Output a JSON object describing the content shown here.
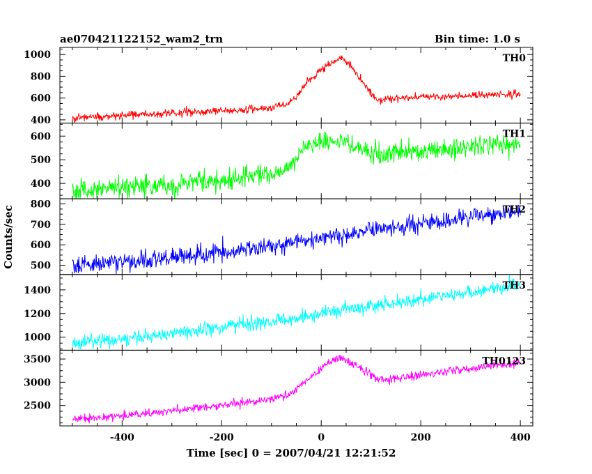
{
  "chart_data": {
    "type": "line",
    "title": "ae070421122152_wam2_trn",
    "bin_time": "Bin time: 1.0 s",
    "xlabel": "Time [sec] 0 = 2007/04/21 12:21:52",
    "ylabel": "Counts/sec",
    "xlim": [
      -525,
      425
    ],
    "x_ticks": [
      -400,
      -200,
      0,
      200,
      400
    ],
    "t_range": [
      -500,
      400
    ],
    "grid": false,
    "panels": [
      {
        "name": "TH0",
        "color": "#ff0000",
        "ylim": [
          370,
          1065
        ],
        "y_ticks": [
          400,
          600,
          800,
          1000
        ],
        "noise": 18,
        "profile": [
          [
            -500,
            420
          ],
          [
            -400,
            440
          ],
          [
            -300,
            462
          ],
          [
            -200,
            485
          ],
          [
            -100,
            505
          ],
          [
            -60,
            560
          ],
          [
            -20,
            780
          ],
          [
            20,
            930
          ],
          [
            40,
            975
          ],
          [
            60,
            900
          ],
          [
            90,
            700
          ],
          [
            110,
            590
          ],
          [
            140,
            590
          ],
          [
            200,
            610
          ],
          [
            300,
            625
          ],
          [
            400,
            640
          ]
        ]
      },
      {
        "name": "TH1",
        "color": "#00ff00",
        "ylim": [
          335,
          655
        ],
        "y_ticks": [
          400,
          500,
          600
        ],
        "noise": 22,
        "profile": [
          [
            -500,
            365
          ],
          [
            -400,
            380
          ],
          [
            -300,
            395
          ],
          [
            -200,
            415
          ],
          [
            -100,
            440
          ],
          [
            -60,
            470
          ],
          [
            -40,
            540
          ],
          [
            0,
            580
          ],
          [
            40,
            578
          ],
          [
            80,
            545
          ],
          [
            120,
            520
          ],
          [
            200,
            535
          ],
          [
            300,
            555
          ],
          [
            400,
            570
          ]
        ]
      },
      {
        "name": "TH2",
        "color": "#0000ff",
        "ylim": [
          455,
          825
        ],
        "y_ticks": [
          500,
          600,
          700,
          800
        ],
        "noise": 22,
        "profile": [
          [
            -500,
            500
          ],
          [
            -400,
            515
          ],
          [
            -300,
            540
          ],
          [
            -200,
            560
          ],
          [
            -100,
            590
          ],
          [
            0,
            630
          ],
          [
            100,
            670
          ],
          [
            200,
            700
          ],
          [
            300,
            735
          ],
          [
            400,
            765
          ]
        ]
      },
      {
        "name": "TH3",
        "color": "#00ffff",
        "ylim": [
          890,
          1530
        ],
        "y_ticks": [
          1000,
          1200,
          1400
        ],
        "noise": 30,
        "profile": [
          [
            -500,
            945
          ],
          [
            -400,
            985
          ],
          [
            -300,
            1030
          ],
          [
            -200,
            1080
          ],
          [
            -100,
            1130
          ],
          [
            0,
            1200
          ],
          [
            100,
            1270
          ],
          [
            200,
            1320
          ],
          [
            300,
            1380
          ],
          [
            400,
            1440
          ]
        ]
      },
      {
        "name": "TH0123",
        "color": "#ff00ff",
        "ylim": [
          2060,
          3690
        ],
        "y_ticks": [
          2500,
          3000,
          3500
        ],
        "noise": 45,
        "profile": [
          [
            -500,
            2200
          ],
          [
            -400,
            2280
          ],
          [
            -300,
            2380
          ],
          [
            -200,
            2500
          ],
          [
            -100,
            2620
          ],
          [
            -60,
            2760
          ],
          [
            -20,
            3150
          ],
          [
            20,
            3450
          ],
          [
            40,
            3530
          ],
          [
            70,
            3380
          ],
          [
            100,
            3150
          ],
          [
            130,
            3050
          ],
          [
            200,
            3150
          ],
          [
            300,
            3300
          ],
          [
            400,
            3420
          ]
        ]
      }
    ]
  }
}
